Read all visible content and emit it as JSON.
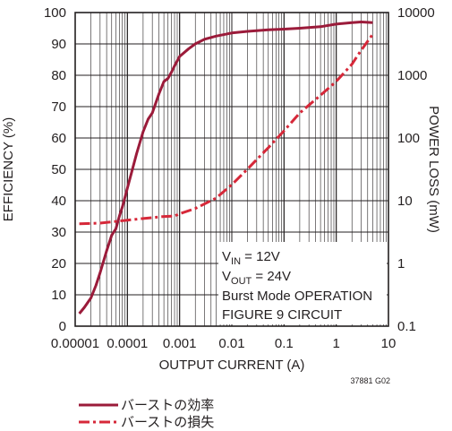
{
  "chart_data": {
    "type": "line",
    "x_scale": "log",
    "xlim": [
      1e-05,
      10
    ],
    "x_ticks": [
      "0.00001",
      "0.0001",
      "0.001",
      "0.01",
      "0.1",
      "1",
      "10"
    ],
    "xlabel": "OUTPUT CURRENT (A)",
    "ylabel_left": "EFFICIENCY (%)",
    "ylim_left": [
      0,
      100
    ],
    "y_ticks_left": [
      "0",
      "10",
      "20",
      "30",
      "40",
      "50",
      "60",
      "70",
      "80",
      "90",
      "100"
    ],
    "ylabel_right": "POWER LOSS (mW)",
    "y_scale_right": "log",
    "ylim_right": [
      0.1,
      10000
    ],
    "y_ticks_right": [
      "0.1",
      "1",
      "10",
      "100",
      "1000",
      "10000"
    ],
    "grid": true,
    "annotation": {
      "vin_main": "V",
      "vin_sub": "IN",
      "vin_value": " = 12V",
      "vout_main": "V",
      "vout_sub": "OUT",
      "vout_value": " = 24V",
      "line3": "Burst Mode OPERATION",
      "line4": "FIGURE 9 CIRCUIT"
    },
    "figure_code": "37881 G02",
    "series": [
      {
        "name": "バーストの効率",
        "axis": "left",
        "style": "solid",
        "color": "#9b1b3a",
        "x": [
          1.2e-05,
          1.5e-05,
          2e-05,
          2.5e-05,
          3e-05,
          4e-05,
          5e-05,
          6e-05,
          7e-05,
          8e-05,
          0.0001,
          0.00012,
          0.00015,
          0.0002,
          0.00025,
          0.0003,
          0.0004,
          0.0005,
          0.0006,
          0.0007,
          0.0008,
          0.001,
          0.0015,
          0.002,
          0.003,
          0.005,
          0.01,
          0.02,
          0.05,
          0.1,
          0.2,
          0.5,
          1,
          2,
          3,
          5
        ],
        "y": [
          4,
          6,
          9,
          13,
          17,
          24,
          29,
          31,
          35,
          38,
          44,
          49,
          55,
          62,
          66,
          68,
          74,
          78,
          79,
          81,
          83,
          86,
          88.5,
          90,
          91.5,
          92.5,
          93.5,
          94,
          94.5,
          94.7,
          95,
          95.5,
          96.3,
          96.8,
          97,
          96.8
        ]
      },
      {
        "name": "バーストの損失",
        "axis": "right",
        "style": "dashdot",
        "color": "#d62839",
        "x": [
          1.2e-05,
          3e-05,
          5e-05,
          0.0001,
          0.0002,
          0.0005,
          0.0008,
          0.001,
          0.002,
          0.005,
          0.01,
          0.02,
          0.05,
          0.1,
          0.2,
          0.5,
          1,
          2,
          3,
          5
        ],
        "y": [
          4.3,
          4.4,
          4.6,
          4.9,
          5.2,
          5.6,
          5.7,
          6.2,
          7.5,
          11,
          18,
          32,
          70,
          130,
          250,
          480,
          800,
          1500,
          2500,
          4500
        ]
      }
    ]
  }
}
